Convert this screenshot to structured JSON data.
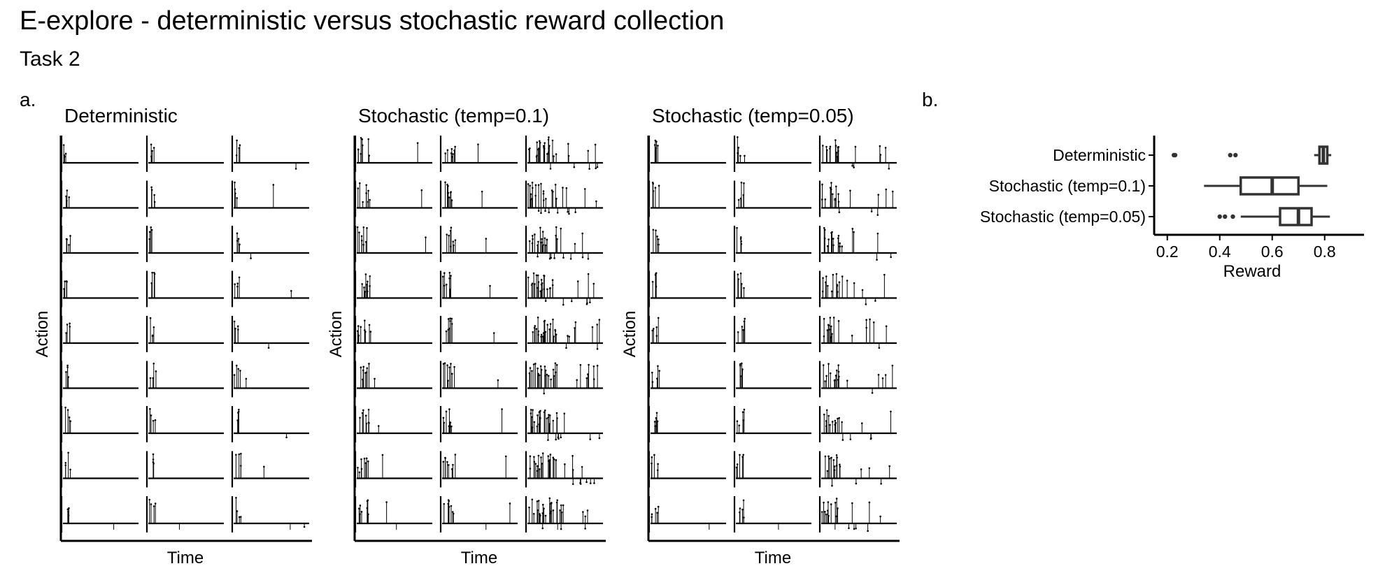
{
  "figure": {
    "title": "E-explore - deterministic versus stochastic reward collection",
    "subtitle": "Task 2",
    "label_a": "a.",
    "label_b": "b."
  },
  "panel_a": {
    "x_label": "Time",
    "y_label": "Action",
    "groups": [
      {
        "name": "Deterministic",
        "rows": 9,
        "cols": 3,
        "cells": [
          [
            {
              "a": 0.75,
              "b": 0.25,
              "c": 0.1
            },
            {
              "a": 0.75,
              "b": 0.25,
              "c": 0.1
            },
            {
              "a": 0.75,
              "b": 0.25,
              "c": 0.1
            }
          ],
          [
            {
              "a": 0.75,
              "b": 0.25,
              "c": 0.1
            },
            {
              "a": 0.75,
              "b": 0.25,
              "c": 0.1
            },
            {
              "a": 0.75,
              "b": 0.25,
              "c": 0.1
            }
          ],
          [
            {
              "a": 0.75,
              "b": 0.25,
              "c": 0.1
            },
            {
              "a": 0.75,
              "b": 0.25,
              "c": 0.1
            },
            {
              "a": 0.75,
              "b": 0.25,
              "c": 0.1
            }
          ],
          [
            {
              "a": 0.75,
              "b": 0.25,
              "c": 0.1
            },
            {
              "a": 0.75,
              "b": 0.25,
              "c": 0.1
            },
            {
              "a": 0.75,
              "b": 0.25,
              "c": 0.1
            }
          ],
          [
            {
              "a": 0.75,
              "b": 0.25,
              "c": 0.1
            },
            {
              "a": 0.75,
              "b": 0.25,
              "c": 0.1
            },
            {
              "a": 0.75,
              "b": 0.25,
              "c": 0.1
            }
          ],
          [
            {
              "a": 0.75,
              "b": 0.25,
              "c": 0.1
            },
            {
              "a": 0.75,
              "b": 0.25,
              "c": 0.1
            },
            {
              "a": 0.75,
              "b": 0.25,
              "c": 0.1
            }
          ],
          [
            {
              "a": 0.75,
              "b": 0.25,
              "c": 0.1
            },
            {
              "a": 0.75,
              "b": 0.25,
              "c": 0.1
            },
            {
              "a": 0.75,
              "b": 0.25,
              "c": 0.1
            }
          ],
          [
            {
              "a": 0.75,
              "b": 0.25,
              "c": 0.1
            },
            {
              "a": 0.75,
              "b": 0.25,
              "c": 0.1
            },
            {
              "a": 0.75,
              "b": 0.25,
              "c": 0.1
            }
          ],
          [
            {
              "a": 0.75,
              "b": 0.25,
              "c": 0.1
            },
            {
              "a": 0.75,
              "b": 0.25,
              "c": 0.1
            },
            {
              "a": 0.75,
              "b": 0.25,
              "c": 0.1
            }
          ]
        ]
      },
      {
        "name": "Stochastic (temp=0.1)",
        "rows": 9,
        "cols": 3,
        "cells": [
          [
            {
              "a": 0.75,
              "b": 0.25,
              "c": 0.3
            },
            {
              "a": 0.75,
              "b": 0.25,
              "c": 0.3
            },
            {
              "a": 0.75,
              "b": 0.25,
              "c": 0.9
            }
          ],
          [
            {
              "a": 0.75,
              "b": 0.25,
              "c": 0.3
            },
            {
              "a": 0.75,
              "b": 0.25,
              "c": 0.3
            },
            {
              "a": 0.75,
              "b": 0.25,
              "c": 0.9
            }
          ],
          [
            {
              "a": 0.75,
              "b": 0.25,
              "c": 0.3
            },
            {
              "a": 0.75,
              "b": 0.25,
              "c": 0.3
            },
            {
              "a": 0.75,
              "b": 0.25,
              "c": 0.9
            }
          ],
          [
            {
              "a": 0.75,
              "b": 0.25,
              "c": 0.3
            },
            {
              "a": 0.75,
              "b": 0.25,
              "c": 0.3
            },
            {
              "a": 0.75,
              "b": 0.25,
              "c": 0.9
            }
          ],
          [
            {
              "a": 0.75,
              "b": 0.25,
              "c": 0.3
            },
            {
              "a": 0.75,
              "b": 0.25,
              "c": 0.3
            },
            {
              "a": 0.75,
              "b": 0.25,
              "c": 0.9
            }
          ],
          [
            {
              "a": 0.75,
              "b": 0.25,
              "c": 0.3
            },
            {
              "a": 0.75,
              "b": 0.25,
              "c": 0.3
            },
            {
              "a": 0.75,
              "b": 0.25,
              "c": 0.9
            }
          ],
          [
            {
              "a": 0.75,
              "b": 0.25,
              "c": 0.3
            },
            {
              "a": 0.75,
              "b": 0.25,
              "c": 0.3
            },
            {
              "a": 0.75,
              "b": 0.25,
              "c": 0.9
            }
          ],
          [
            {
              "a": 0.75,
              "b": 0.25,
              "c": 0.3
            },
            {
              "a": 0.75,
              "b": 0.25,
              "c": 0.3
            },
            {
              "a": 0.75,
              "b": 0.25,
              "c": 0.9
            }
          ],
          [
            {
              "a": 0.75,
              "b": 0.25,
              "c": 0.3
            },
            {
              "a": 0.75,
              "b": 0.25,
              "c": 0.3
            },
            {
              "a": 0.75,
              "b": 0.25,
              "c": 0.9
            }
          ]
        ]
      },
      {
        "name": "Stochastic (temp=0.05)",
        "rows": 9,
        "cols": 3,
        "cells": [
          [
            {
              "a": 0.75,
              "b": 0.25,
              "c": 0.15
            },
            {
              "a": 0.75,
              "b": 0.25,
              "c": 0.15
            },
            {
              "a": 0.75,
              "b": 0.25,
              "c": 0.5
            }
          ],
          [
            {
              "a": 0.75,
              "b": 0.25,
              "c": 0.15
            },
            {
              "a": 0.75,
              "b": 0.25,
              "c": 0.15
            },
            {
              "a": 0.75,
              "b": 0.25,
              "c": 0.5
            }
          ],
          [
            {
              "a": 0.75,
              "b": 0.25,
              "c": 0.15
            },
            {
              "a": 0.75,
              "b": 0.25,
              "c": 0.15
            },
            {
              "a": 0.75,
              "b": 0.25,
              "c": 0.5
            }
          ],
          [
            {
              "a": 0.75,
              "b": 0.25,
              "c": 0.15
            },
            {
              "a": 0.75,
              "b": 0.25,
              "c": 0.15
            },
            {
              "a": 0.75,
              "b": 0.25,
              "c": 0.5
            }
          ],
          [
            {
              "a": 0.75,
              "b": 0.25,
              "c": 0.15
            },
            {
              "a": 0.75,
              "b": 0.25,
              "c": 0.15
            },
            {
              "a": 0.75,
              "b": 0.25,
              "c": 0.5
            }
          ],
          [
            {
              "a": 0.75,
              "b": 0.25,
              "c": 0.15
            },
            {
              "a": 0.75,
              "b": 0.25,
              "c": 0.15
            },
            {
              "a": 0.75,
              "b": 0.25,
              "c": 0.5
            }
          ],
          [
            {
              "a": 0.75,
              "b": 0.25,
              "c": 0.15
            },
            {
              "a": 0.75,
              "b": 0.25,
              "c": 0.15
            },
            {
              "a": 0.75,
              "b": 0.25,
              "c": 0.5
            }
          ],
          [
            {
              "a": 0.75,
              "b": 0.25,
              "c": 0.15
            },
            {
              "a": 0.75,
              "b": 0.25,
              "c": 0.15
            },
            {
              "a": 0.75,
              "b": 0.25,
              "c": 0.5
            }
          ],
          [
            {
              "a": 0.75,
              "b": 0.25,
              "c": 0.15
            },
            {
              "a": 0.75,
              "b": 0.25,
              "c": 0.15
            },
            {
              "a": 0.75,
              "b": 0.25,
              "c": 0.5
            }
          ]
        ]
      }
    ]
  },
  "chart_data": [
    {
      "type": "line",
      "title": "",
      "xlabel": "Time",
      "ylabel": "Action",
      "facets": [
        "Deterministic",
        "Stochastic (temp=0.1)",
        "Stochastic (temp=0.05)"
      ],
      "facet_grid": [
        9,
        3
      ],
      "note_values": "action traces per small-multiple; exploration spike density per facet column",
      "series": [
        {
          "name": "Deterministic",
          "exploration_density": [
            0.1,
            0.1,
            0.1
          ]
        },
        {
          "name": "Stochastic (temp=0.1)",
          "exploration_density": [
            0.3,
            0.3,
            0.9
          ]
        },
        {
          "name": "Stochastic (temp=0.05)",
          "exploration_density": [
            0.15,
            0.15,
            0.5
          ]
        }
      ]
    },
    {
      "type": "box",
      "title": "",
      "xlabel": "Reward",
      "ylabel": "",
      "xlim": [
        0.15,
        0.95
      ],
      "x_ticks": [
        0.2,
        0.4,
        0.6,
        0.8
      ],
      "x_tick_labels": [
        "0.2",
        "0.4",
        "0.6",
        "0.8"
      ],
      "categories": [
        "Deterministic",
        "Stochastic (temp=0.1)",
        "Stochastic (temp=0.05)"
      ],
      "boxes": [
        {
          "name": "Deterministic",
          "whisker_low": 0.76,
          "q1": 0.78,
          "median": 0.795,
          "q3": 0.81,
          "whisker_high": 0.825,
          "outliers": [
            0.225,
            0.23,
            0.44,
            0.46
          ]
        },
        {
          "name": "Stochastic (temp=0.1)",
          "whisker_low": 0.34,
          "q1": 0.48,
          "median": 0.6,
          "q3": 0.7,
          "whisker_high": 0.81,
          "outliers": []
        },
        {
          "name": "Stochastic (temp=0.05)",
          "whisker_low": 0.48,
          "q1": 0.63,
          "median": 0.7,
          "q3": 0.75,
          "whisker_high": 0.82,
          "outliers": [
            0.4,
            0.42,
            0.45
          ]
        }
      ]
    }
  ]
}
